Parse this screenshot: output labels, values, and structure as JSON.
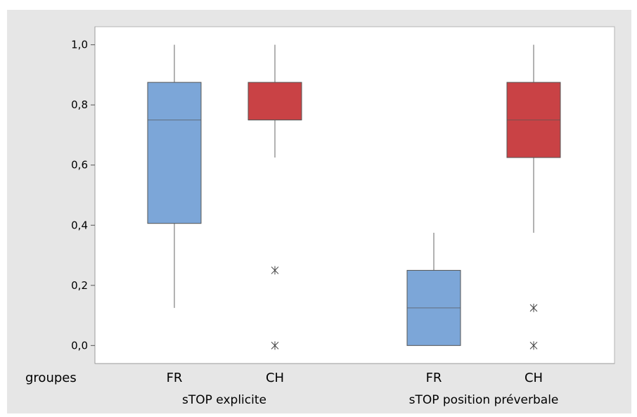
{
  "chart_data": {
    "type": "box",
    "y_ticks": [
      "0,0",
      "0,2",
      "0,4",
      "0,6",
      "0,8",
      "1,0"
    ],
    "y_tick_values": [
      0.0,
      0.2,
      0.4,
      0.6,
      0.8,
      1.0
    ],
    "ylim": [
      -0.06,
      1.06
    ],
    "grid": false,
    "row_label": "groupes",
    "groups": [
      {
        "label": "sTOP explicite",
        "categories": [
          "FR",
          "CH"
        ]
      },
      {
        "label": "sTOP position préverbale",
        "categories": [
          "FR",
          "CH"
        ]
      }
    ],
    "boxes": [
      {
        "group": "sTOP explicite",
        "category": "FR",
        "color": "#7ca6d8",
        "whisker_low": 0.125,
        "q1": 0.406,
        "median": 0.75,
        "q3": 0.875,
        "whisker_high": 1.0,
        "outliers": []
      },
      {
        "group": "sTOP explicite",
        "category": "CH",
        "color": "#c94245",
        "whisker_low": 0.625,
        "q1": 0.75,
        "median": 0.75,
        "q3": 0.875,
        "whisker_high": 1.0,
        "outliers": [
          0.25,
          0.0
        ]
      },
      {
        "group": "sTOP position préverbale",
        "category": "FR",
        "color": "#7ca6d8",
        "whisker_low": 0.0,
        "q1": 0.0,
        "median": 0.125,
        "q3": 0.25,
        "whisker_high": 0.375,
        "outliers": []
      },
      {
        "group": "sTOP position préverbale",
        "category": "CH",
        "color": "#c94245",
        "whisker_low": 0.375,
        "q1": 0.625,
        "median": 0.75,
        "q3": 0.875,
        "whisker_high": 1.0,
        "outliers": [
          0.125,
          0.0
        ]
      }
    ]
  }
}
